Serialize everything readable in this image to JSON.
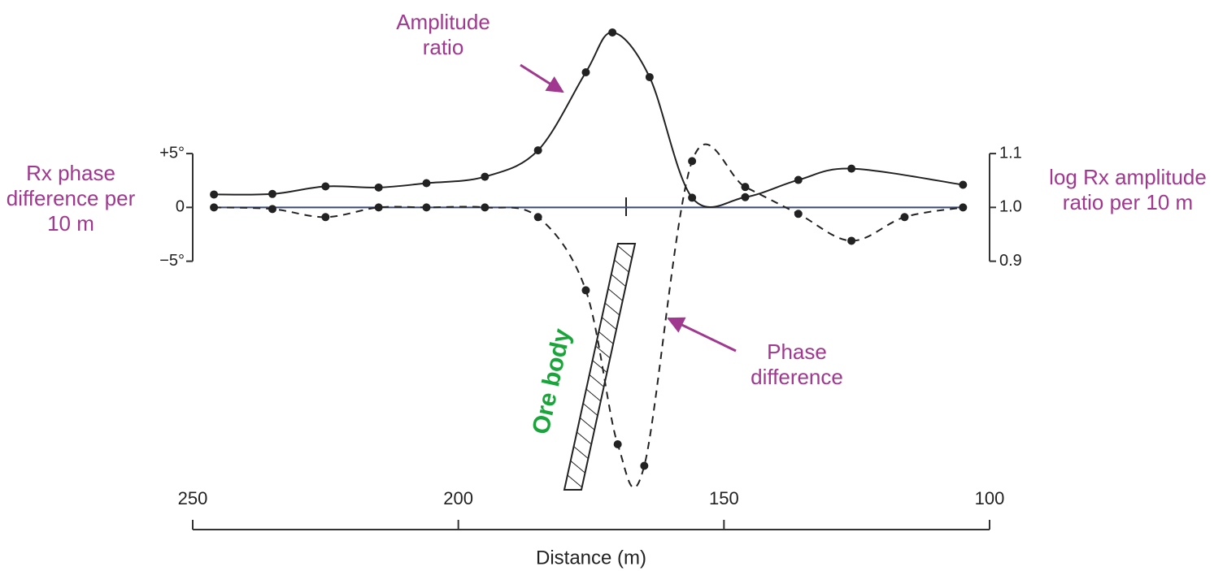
{
  "chart_data": {
    "type": "line",
    "xlabel": "Distance (m)",
    "ylabel": "Rx phase difference per 10 m",
    "y2label": "log Rx amplitude ratio per 10 m",
    "annotation": "Ore body",
    "xlim": [
      250,
      100
    ],
    "xticks": [
      250,
      200,
      150,
      100
    ],
    "ylim": [
      -26,
      17
    ],
    "yticks": [
      {
        "value": 5,
        "label": "+5°"
      },
      0,
      {
        "value": -5,
        "label": "−5°"
      }
    ],
    "y2lim": [
      0.48,
      1.34
    ],
    "y2ticks": [
      1.1,
      {
        "value": 1.0,
        "label": "1.0"
      },
      0.9
    ],
    "series": [
      {
        "name": "Phase difference",
        "color": "#222222",
        "dashed": true,
        "axis": "y",
        "x": [
          246,
          235,
          225,
          215,
          206,
          195,
          185,
          176,
          170,
          165,
          156,
          146,
          136,
          126,
          116,
          105
        ],
        "values": [
          0,
          -0.15,
          -0.9,
          0,
          0,
          0,
          -0.9,
          -7.7,
          -22,
          -24,
          4.3,
          1.9,
          -0.6,
          -3.1,
          -0.9,
          0
        ]
      },
      {
        "name": "Amplitude ratio",
        "color": "#222222",
        "dashed": false,
        "axis": "y2",
        "x": [
          246,
          235,
          225,
          215,
          206,
          195,
          185,
          176,
          171,
          164,
          156,
          146,
          136,
          126,
          105
        ],
        "values": [
          1.024,
          1.025,
          1.039,
          1.037,
          1.045,
          1.057,
          1.106,
          1.251,
          1.325,
          1.242,
          1.018,
          1.019,
          1.051,
          1.072,
          1.042
        ]
      }
    ]
  }
}
